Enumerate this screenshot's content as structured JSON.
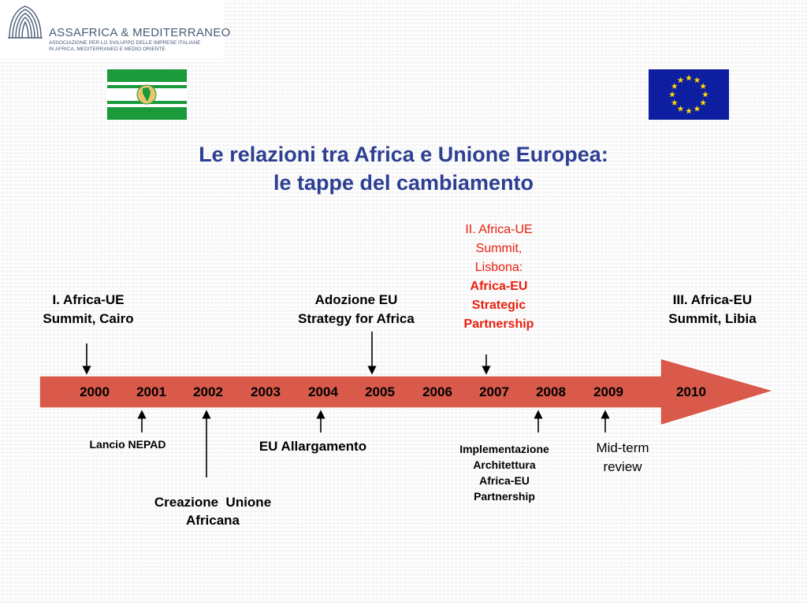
{
  "logo": {
    "name": "ASSAFRICA & MEDITERRANEO",
    "tagline_line1": "ASSOCIAZIONE PER LO SVILUPPO DELLE IMPRESE ITALIANE",
    "tagline_line2": "IN AFRICA, MEDITERRANEO E MEDIO ORIENTE"
  },
  "flags": {
    "african_union": "african-union-flag-icon",
    "european_union": "eu-flag-icon"
  },
  "title": {
    "line1": "Le relazioni tra Africa e Unione Europea:",
    "line2": "le tappe del cambiamento"
  },
  "timeline": {
    "years": [
      "2000",
      "2001",
      "2002",
      "2003",
      "2004",
      "2005",
      "2006",
      "2007",
      "2008",
      "2009",
      "2010"
    ],
    "arrow_color": "#d9594a",
    "events_above": [
      {
        "line1": "I. Africa-UE",
        "line2": "Summit, Cairo"
      },
      {
        "line1": "Adozione EU",
        "line2": "Strategy for Africa"
      },
      {
        "line1": "II. Africa-UE",
        "line2": "Summit,",
        "line3": "Lisbona:",
        "line4": "Africa-EU",
        "line5": "Strategic",
        "line6": "Partnership"
      },
      {
        "line1": "III. Africa-EU",
        "line2": "Summit, Libia"
      }
    ],
    "events_below": [
      {
        "line1": "Lancio NEPAD"
      },
      {
        "line1": "Creazione  Unione",
        "line2": "Africana"
      },
      {
        "line1": "EU Allargamento"
      },
      {
        "line1": "Implementazione",
        "line2": "Architettura",
        "line3": "Africa-EU",
        "line4": "Partnership"
      },
      {
        "line1": "Mid-term",
        "line2": "review"
      }
    ]
  },
  "colors": {
    "title": "#2d3f93",
    "highlight": "#e8200f",
    "au_green": "#1a9a3a",
    "eu_blue": "#0d1fa0",
    "eu_gold": "#ffd700"
  }
}
